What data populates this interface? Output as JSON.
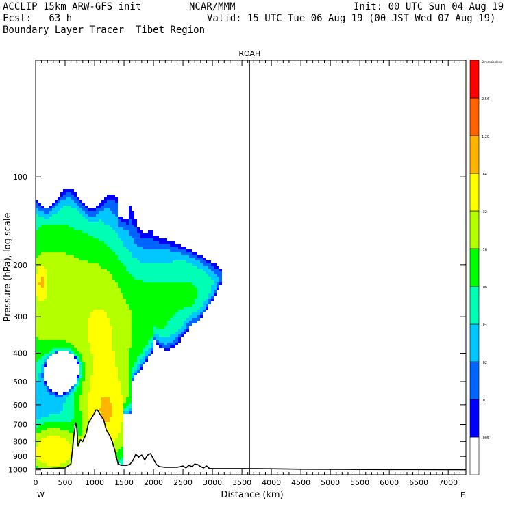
{
  "header": {
    "line1_left": "ACCLIP 15km ARW-GFS init",
    "line1_mid": "NCAR/MMM",
    "line1_right": "Init: 00 UTC Sun 04 Aug 19",
    "line2_left": "Fcst:   63 h",
    "line2_right": "Valid: 15 UTC Tue 06 Aug 19 (00 JST Wed 07 Aug 19)",
    "line3_left": "Boundary Layer Tracer  Tibet Region"
  },
  "chart_data": {
    "type": "heatmap",
    "title": "ROAH",
    "xlabel": "Distance (km)",
    "ylabel": "Pressure (hPa), log scale",
    "xlim": [
      0,
      7300
    ],
    "ylim": [
      1040,
      40
    ],
    "y_scale": "log",
    "x_ticks": [
      "0",
      "500",
      "1000",
      "1500",
      "2000",
      "2500",
      "3000",
      "3500",
      "4000",
      "4500",
      "5000",
      "5500",
      "6000",
      "6500",
      "7000"
    ],
    "y_ticks": [
      "100",
      "200",
      "300",
      "400",
      "500",
      "600",
      "700",
      "800",
      "900",
      "1000"
    ],
    "x_end_labels": {
      "left": "W",
      "right": "E"
    },
    "marker_line_x_km": 3630,
    "colorbar": {
      "levels": [
        ".005",
        ".01",
        ".02",
        ".04",
        ".08",
        ".16",
        ".32",
        ".64",
        "1.28",
        "2.56",
        "Dimensionless"
      ],
      "colors": [
        "#ffffff",
        "#0000ff",
        "#0064ff",
        "#00c8ff",
        "#00ffb4",
        "#00ff00",
        "#b4ff00",
        "#ffff00",
        "#ffb400",
        "#ff6400",
        "#ff0000"
      ]
    },
    "terrain_profile_hpa": {
      "x_km": [
        0,
        100,
        200,
        300,
        400,
        500,
        600,
        650,
        680,
        700,
        720,
        760,
        800,
        850,
        900,
        950,
        1000,
        1020,
        1050,
        1100,
        1150,
        1200,
        1250,
        1300,
        1350,
        1400,
        1450,
        1500,
        1550,
        1600,
        1650,
        1700,
        1750,
        1800,
        1850,
        1900,
        1950,
        2000,
        2050,
        2100,
        2200,
        2300,
        2400,
        2500,
        2550,
        2600,
        2650,
        2700,
        2750,
        2800,
        2850,
        2900,
        2950,
        3000,
        3200,
        3500,
        4000,
        4500,
        5000,
        5500,
        6000,
        6500,
        7000,
        7300
      ],
      "p_hpa": [
        990,
        990,
        990,
        988,
        986,
        985,
        955,
        760,
        690,
        720,
        830,
        790,
        800,
        760,
        690,
        665,
        640,
        625,
        625,
        650,
        670,
        730,
        760,
        800,
        865,
        955,
        965,
        965,
        965,
        958,
        930,
        885,
        905,
        890,
        925,
        890,
        880,
        920,
        960,
        975,
        980,
        980,
        980,
        970,
        985,
        965,
        975,
        955,
        960,
        975,
        985,
        970,
        990,
        990,
        990,
        990,
        992,
        995,
        996,
        997,
        998,
        998,
        999,
        999
      ]
    }
  }
}
